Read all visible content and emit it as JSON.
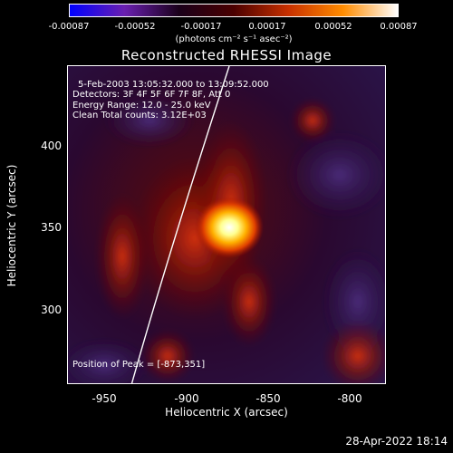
{
  "colorbar": {
    "ticks": [
      "-0.00087",
      "-0.00052",
      "-0.00017",
      "0.00017",
      "0.00052",
      "0.00087"
    ],
    "units": "(photons cm⁻² s⁻¹ asec⁻²)",
    "colors": [
      "#0000ff",
      "#6a1fb0",
      "#1a001a",
      "#4a0000",
      "#c83000",
      "#ff8c00",
      "#ffffff"
    ]
  },
  "title": "Reconstructed RHESSI Image",
  "annotations": {
    "time_range": "5-Feb-2003 13:05:32.000 to 13:09:52.000",
    "detectors": "Detectors: 3F 4F 5F 6F 7F 8F, Att 0",
    "energy": "Energy Range: 12.0 - 25.0 keV",
    "clean": "Clean     Total counts: 3.12E+03",
    "peak": "Position of Peak = [-873,351]"
  },
  "axes": {
    "x_label": "Heliocentric X (arcsec)",
    "y_label": "Heliocentric Y (arcsec)",
    "x_ticks": [
      "-950",
      "-900",
      "-850",
      "-800"
    ],
    "y_ticks": [
      "400",
      "350",
      "300"
    ]
  },
  "timestamp": "28-Apr-2022 18:14"
}
